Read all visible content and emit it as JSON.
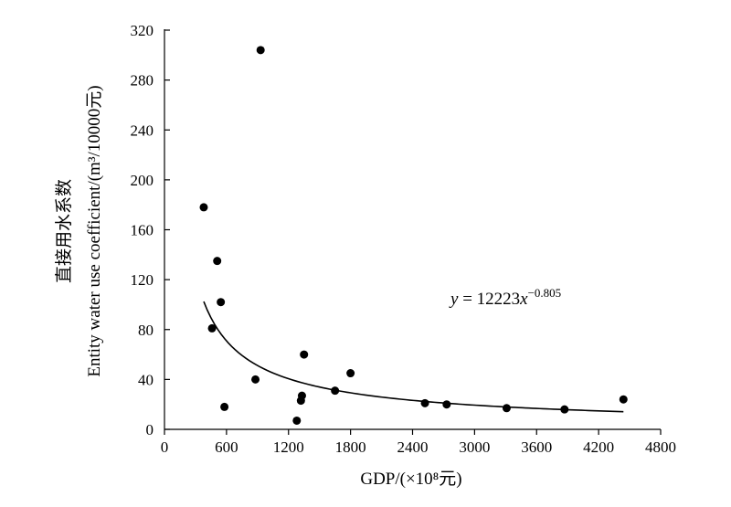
{
  "chart_data": {
    "type": "scatter",
    "title": "",
    "xlabel": "GDP/(×10⁸元)",
    "ylabel_cn": "直接用水系数",
    "ylabel_en": "Entity water use coefficient/(m³/10000元)",
    "xlim": [
      0,
      4800
    ],
    "ylim": [
      0,
      320
    ],
    "x_ticks": [
      0,
      600,
      1200,
      1800,
      2400,
      3000,
      3600,
      4200,
      4800
    ],
    "y_ticks": [
      0,
      40,
      80,
      120,
      160,
      200,
      240,
      280,
      320
    ],
    "grid": false,
    "series": [
      {
        "points": [
          {
            "x": 380,
            "y": 178
          },
          {
            "x": 460,
            "y": 81
          },
          {
            "x": 510,
            "y": 135
          },
          {
            "x": 545,
            "y": 102
          },
          {
            "x": 580,
            "y": 18
          },
          {
            "x": 880,
            "y": 40
          },
          {
            "x": 930,
            "y": 304
          },
          {
            "x": 1280,
            "y": 7
          },
          {
            "x": 1320,
            "y": 23
          },
          {
            "x": 1330,
            "y": 27
          },
          {
            "x": 1350,
            "y": 60
          },
          {
            "x": 1650,
            "y": 31
          },
          {
            "x": 1800,
            "y": 45
          },
          {
            "x": 2520,
            "y": 21
          },
          {
            "x": 2730,
            "y": 20
          },
          {
            "x": 3310,
            "y": 17
          },
          {
            "x": 3870,
            "y": 16
          },
          {
            "x": 4440,
            "y": 24
          }
        ]
      }
    ],
    "fit": {
      "type": "power",
      "coefficient": 12223,
      "exponent": -0.805,
      "x_range": [
        380,
        4440
      ],
      "equation_parts": {
        "y": "y",
        "eq": " = 12223",
        "x": "x",
        "exp": "−0.805"
      }
    }
  }
}
